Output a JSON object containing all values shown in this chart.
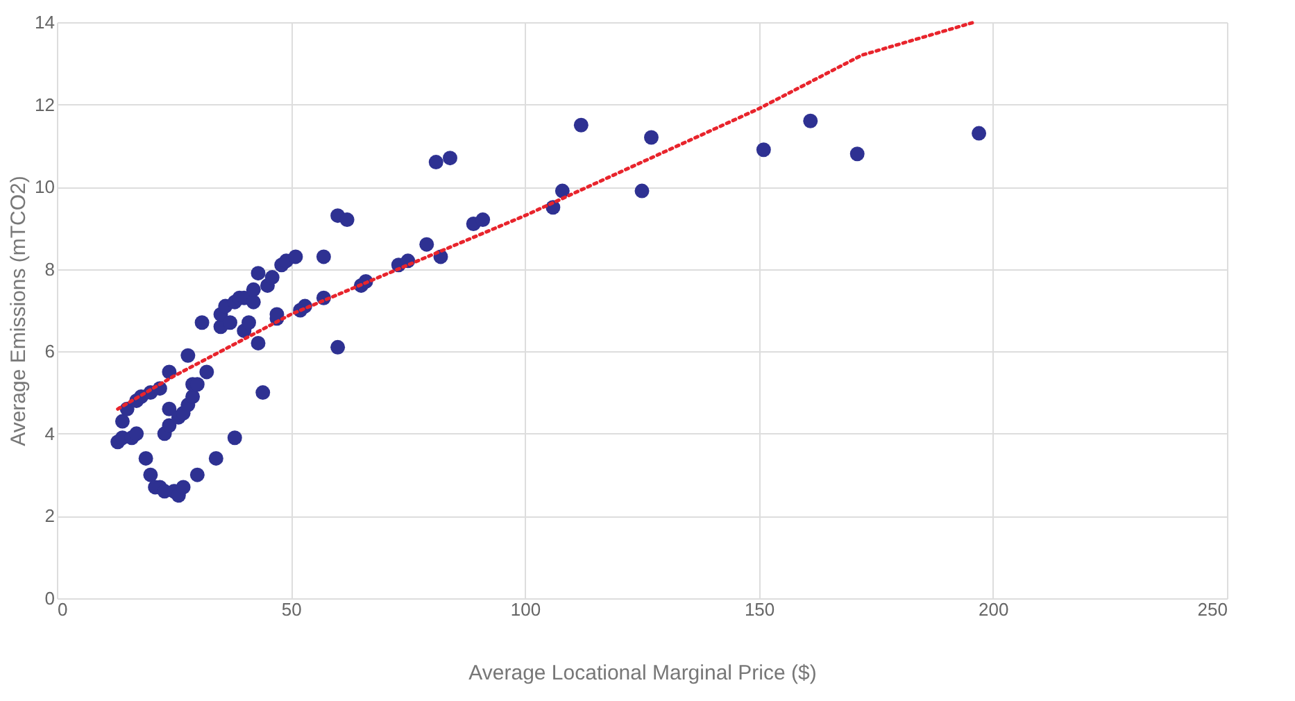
{
  "chart_data": {
    "type": "scatter",
    "xlabel": "Average  Locational Marginal Price ($)",
    "ylabel": "Average Emissions (mTCO2)",
    "xlim": [
      0,
      250
    ],
    "xticks": [
      0,
      50,
      100,
      150,
      200,
      250
    ],
    "ylim": [
      0,
      14
    ],
    "yticks": [
      0,
      2,
      4,
      6,
      8,
      10,
      12,
      14
    ],
    "grid": true,
    "series": [
      {
        "marker": "circle",
        "color": "#2e3192",
        "x": [
          13,
          14,
          14,
          15,
          16,
          17,
          17,
          18,
          19,
          20,
          20,
          21,
          22,
          22,
          23,
          23,
          24,
          24,
          24,
          25,
          26,
          26,
          27,
          27,
          28,
          28,
          29,
          29,
          30,
          30,
          31,
          32,
          34,
          35,
          35,
          36,
          37,
          38,
          38,
          39,
          40,
          40,
          41,
          42,
          42,
          43,
          43,
          44,
          45,
          46,
          47,
          47,
          48,
          49,
          51,
          52,
          53,
          57,
          57,
          60,
          60,
          62,
          65,
          66,
          73,
          75,
          79,
          81,
          82,
          84,
          89,
          91,
          106,
          108,
          112,
          125,
          127,
          151,
          161,
          171,
          197
        ],
        "values": [
          3.8,
          3.9,
          4.3,
          4.6,
          3.9,
          4.0,
          4.8,
          4.9,
          3.4,
          3.0,
          5.0,
          2.7,
          2.7,
          5.1,
          4.0,
          2.6,
          4.2,
          4.6,
          5.5,
          2.6,
          4.4,
          2.5,
          4.5,
          2.7,
          4.7,
          5.9,
          4.9,
          5.2,
          3.0,
          5.2,
          6.7,
          5.5,
          3.4,
          6.6,
          6.9,
          7.1,
          6.7,
          3.9,
          7.2,
          7.3,
          6.5,
          7.3,
          6.7,
          7.2,
          7.5,
          6.2,
          7.9,
          5.0,
          7.6,
          7.8,
          6.8,
          6.9,
          8.1,
          8.2,
          8.3,
          7.0,
          7.1,
          7.3,
          8.3,
          6.1,
          9.3,
          9.2,
          7.6,
          7.7,
          8.1,
          8.2,
          8.6,
          10.6,
          8.3,
          10.7,
          9.1,
          9.2,
          9.5,
          9.9,
          11.5,
          9.9,
          11.2,
          10.9,
          11.6,
          10.8,
          11.3
        ]
      },
      {
        "type": "line",
        "color": "#e8242c",
        "line_style": "dotted",
        "x": [
          13,
          25,
          50,
          75,
          100,
          125,
          150,
          172,
          196
        ],
        "values": [
          4.6,
          5.4,
          6.9,
          8.1,
          9.3,
          10.6,
          11.9,
          13.2,
          14.0
        ]
      }
    ]
  }
}
